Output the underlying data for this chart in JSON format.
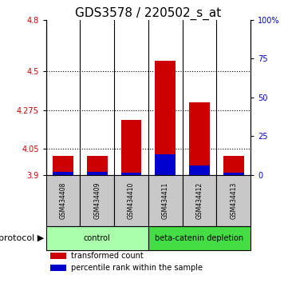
{
  "title": "GDS3578 / 220502_s_at",
  "samples": [
    "GSM434408",
    "GSM434409",
    "GSM434410",
    "GSM434411",
    "GSM434412",
    "GSM434413"
  ],
  "red_values": [
    4.01,
    4.01,
    4.22,
    4.56,
    4.32,
    4.01
  ],
  "blue_values": [
    3.915,
    3.918,
    3.912,
    4.02,
    3.955,
    3.912
  ],
  "base": 3.9,
  "ylim_left": [
    3.9,
    4.8
  ],
  "ylim_right": [
    0,
    100
  ],
  "yticks_left": [
    3.9,
    4.05,
    4.275,
    4.5,
    4.8
  ],
  "ytick_labels_left": [
    "3.9",
    "4.05",
    "4.275",
    "4.5",
    "4.8"
  ],
  "yticks_right": [
    0,
    25,
    50,
    75,
    100
  ],
  "ytick_labels_right": [
    "0",
    "25",
    "50",
    "75",
    "100%"
  ],
  "protocol_groups": [
    {
      "label": "control",
      "indices": [
        0,
        1,
        2
      ],
      "color": "#aaffaa"
    },
    {
      "label": "beta-catenin depletion",
      "indices": [
        3,
        4,
        5
      ],
      "color": "#44dd44"
    }
  ],
  "protocol_label": "protocol",
  "red_color": "#cc0000",
  "blue_color": "#0000cc",
  "bar_width": 0.6,
  "legend_red": "transformed count",
  "legend_blue": "percentile rank within the sample",
  "title_fontsize": 11,
  "tick_label_color_left": "#cc0000",
  "tick_label_color_right": "#0000cc",
  "sample_bg_color": "#c8c8c8",
  "grid_dotted_ticks": [
    4.05,
    4.275,
    4.5
  ]
}
